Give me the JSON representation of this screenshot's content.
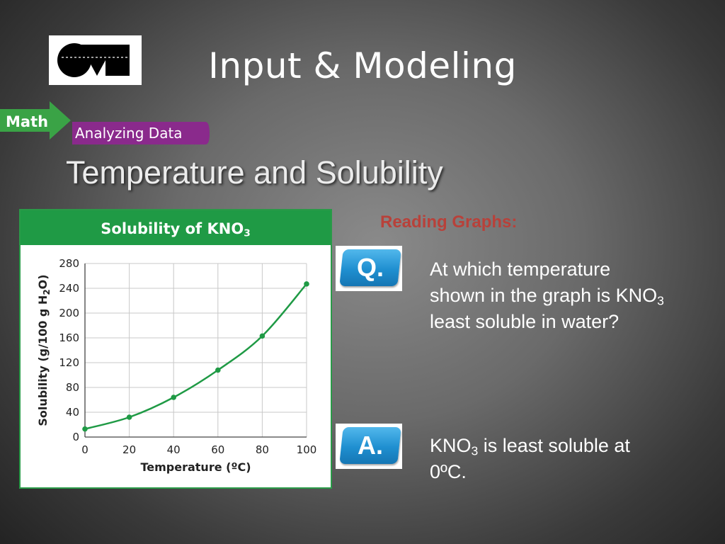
{
  "slide": {
    "title": "Input & Modeling",
    "banner_label_math": "Math",
    "banner_label_analyzing": "Analyzing Data",
    "subtitle": "Temperature and Solubility",
    "reading_graphs": "Reading Graphs:",
    "q_icon_label": "Q.",
    "a_icon_label": "A.",
    "question_line1": "At which temperature",
    "question_line2_pre": "shown in the graph is KNO",
    "question_line2_sub": "3",
    "question_line3": "least soluble in water?",
    "answer_line1_pre": "KNO",
    "answer_line1_sub": "3",
    "answer_line1_post": " is least soluble at",
    "answer_line2": "0ºC."
  },
  "colors": {
    "chart_green": "#1f9a45",
    "curve": "#1f9a45",
    "reading_red": "#b8413a",
    "qa_blue": "#1f8fd0"
  },
  "chart_data": {
    "type": "line",
    "title_pre": "Solubility of KNO",
    "title_sub": "3",
    "xlabel": "Temperature (ºC)",
    "ylabel_pre": "Solubility (g/100 g H",
    "ylabel_sub": "2",
    "ylabel_post": "O)",
    "xlim": [
      0,
      100
    ],
    "ylim": [
      0,
      280
    ],
    "x_ticks": [
      0,
      20,
      40,
      60,
      80,
      100
    ],
    "y_ticks": [
      0,
      40,
      80,
      120,
      160,
      200,
      240,
      280
    ],
    "grid": true,
    "series": [
      {
        "x": [
          0,
          20,
          40,
          60,
          80,
          100
        ],
        "y": [
          13,
          32,
          64,
          108,
          163,
          247
        ]
      }
    ]
  }
}
